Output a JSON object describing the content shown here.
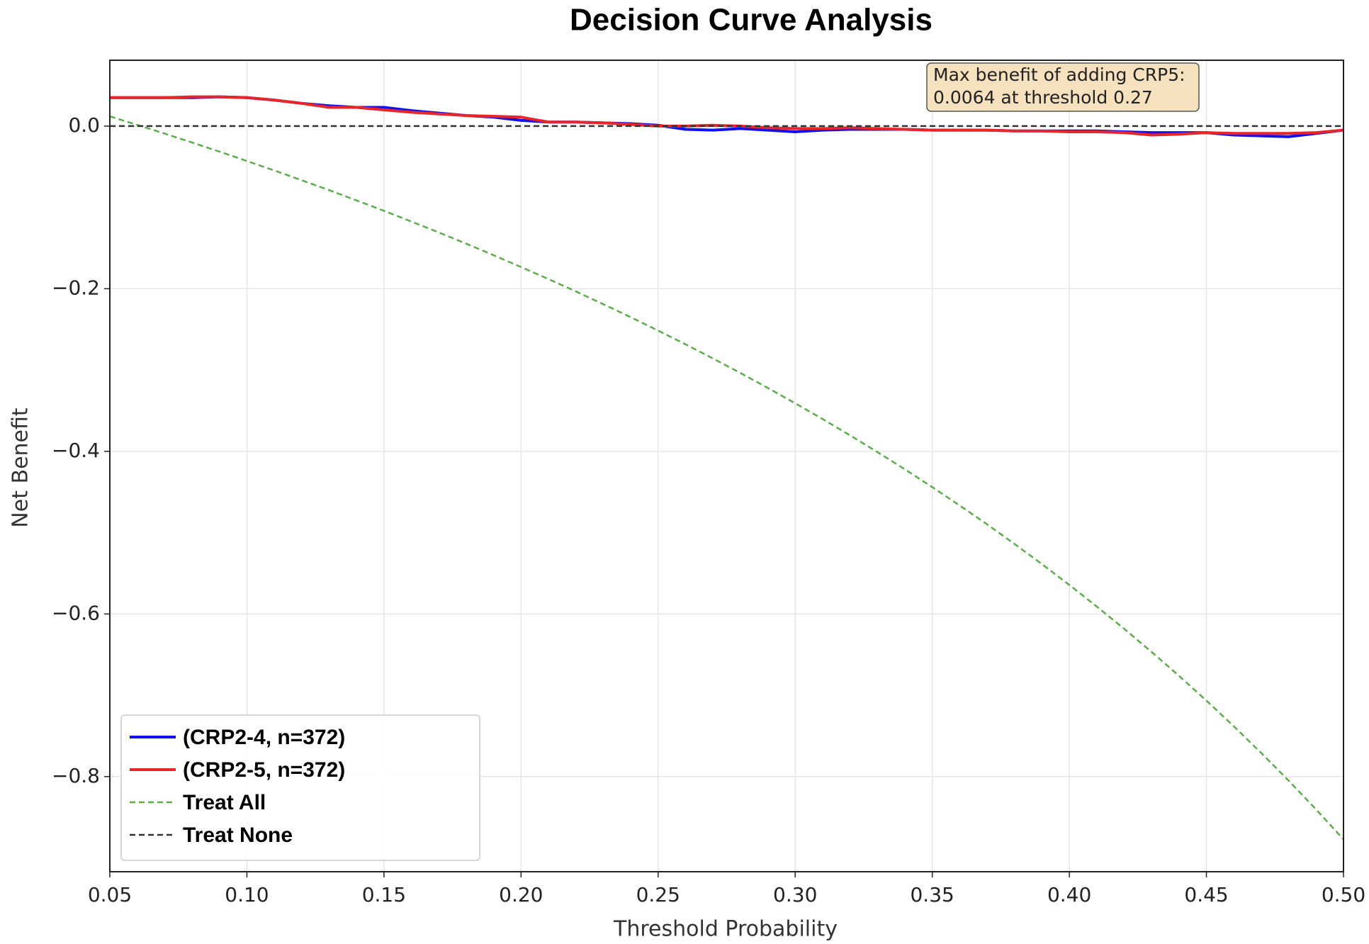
{
  "chart_data": {
    "type": "line",
    "title": "Decision Curve Analysis",
    "x_label": "Threshold Probability",
    "y_label": "Net Benefit",
    "annotation": [
      "Max benefit of adding CRP5:",
      "0.0064 at threshold 0.27"
    ],
    "xlim": [
      0.05,
      0.5
    ],
    "ylim": [
      -0.917,
      0.081
    ],
    "xticks": [
      {
        "value": 0.05,
        "label": "0.05"
      },
      {
        "value": 0.1,
        "label": "0.10"
      },
      {
        "value": 0.15,
        "label": "0.15"
      },
      {
        "value": 0.2,
        "label": "0.20"
      },
      {
        "value": 0.25,
        "label": "0.25"
      },
      {
        "value": 0.3,
        "label": "0.30"
      },
      {
        "value": 0.35,
        "label": "0.35"
      },
      {
        "value": 0.4,
        "label": "0.40"
      },
      {
        "value": 0.45,
        "label": "0.45"
      },
      {
        "value": 0.5,
        "label": "0.50"
      }
    ],
    "yticks": [
      {
        "value": -0.8,
        "label": "−0.8"
      },
      {
        "value": -0.6,
        "label": "−0.6"
      },
      {
        "value": -0.4,
        "label": "−0.4"
      },
      {
        "value": -0.2,
        "label": "−0.2"
      },
      {
        "value": 0,
        "label": "0.0"
      }
    ],
    "grid": true,
    "legend": "lower left",
    "x": [
      0.05,
      0.06,
      0.07,
      0.08,
      0.09,
      0.1,
      0.11,
      0.12,
      0.13,
      0.14,
      0.15,
      0.16,
      0.17,
      0.18,
      0.19,
      0.2,
      0.21,
      0.22,
      0.23,
      0.24,
      0.25,
      0.26,
      0.27,
      0.28,
      0.29,
      0.3,
      0.31,
      0.32,
      0.33,
      0.34,
      0.35,
      0.36,
      0.37,
      0.38,
      0.39,
      0.4,
      0.41,
      0.42,
      0.43,
      0.44,
      0.45,
      0.46,
      0.47,
      0.48,
      0.49,
      0.5
    ],
    "series": [
      {
        "name": "(CRP2-4, n=372)",
        "color": "#1010f0",
        "width": 4,
        "dash": "none",
        "values": [
          0.035,
          0.035,
          0.035,
          0.035,
          0.036,
          0.035,
          0.032,
          0.028,
          0.025,
          0.023,
          0.023,
          0.019,
          0.016,
          0.013,
          0.011,
          0.007,
          0.005,
          0.005,
          0.004,
          0.003,
          0.001,
          -0.004,
          -0.005,
          -0.003,
          -0.005,
          -0.007,
          -0.005,
          -0.004,
          -0.004,
          -0.004,
          -0.005,
          -0.005,
          -0.005,
          -0.006,
          -0.006,
          -0.006,
          -0.006,
          -0.007,
          -0.008,
          -0.008,
          -0.008,
          -0.011,
          -0.012,
          -0.013,
          -0.009,
          -0.005
        ]
      },
      {
        "name": "(CRP2-5, n=372)",
        "color": "#e8262a",
        "width": 4,
        "dash": "none",
        "values": [
          0.035,
          0.035,
          0.035,
          0.036,
          0.036,
          0.035,
          0.032,
          0.028,
          0.023,
          0.023,
          0.02,
          0.017,
          0.015,
          0.013,
          0.012,
          0.011,
          0.005,
          0.005,
          0.004,
          0.002,
          0.0,
          0.0,
          0.001,
          0.0,
          -0.002,
          -0.003,
          -0.003,
          -0.002,
          -0.003,
          -0.004,
          -0.005,
          -0.005,
          -0.005,
          -0.006,
          -0.006,
          -0.007,
          -0.007,
          -0.008,
          -0.011,
          -0.01,
          -0.008,
          -0.009,
          -0.009,
          -0.009,
          -0.008,
          -0.005
        ]
      },
      {
        "name": "Treat All",
        "color": "#5aad4a",
        "width": 2.5,
        "dash": "8 5",
        "values": [
          0.012,
          0.0015,
          -0.0092,
          -0.0202,
          -0.0314,
          -0.0429,
          -0.0546,
          -0.0666,
          -0.0788,
          -0.0914,
          -0.1042,
          -0.1174,
          -0.1308,
          -0.1446,
          -0.1588,
          -0.1733,
          -0.1881,
          -0.2033,
          -0.219,
          -0.235,
          -0.2515,
          -0.2684,
          -0.2858,
          -0.3036,
          -0.322,
          -0.3409,
          -0.3603,
          -0.3803,
          -0.4009,
          -0.4221,
          -0.444,
          -0.4666,
          -0.4898,
          -0.5139,
          -0.5387,
          -0.5643,
          -0.5909,
          -0.6183,
          -0.6467,
          -0.6761,
          -0.7066,
          -0.7382,
          -0.771,
          -0.805,
          -0.8404,
          -0.8772
        ]
      },
      {
        "name": "Treat None",
        "color": "#333333",
        "width": 2.5,
        "dash": "8 5",
        "values": [
          0,
          0,
          0,
          0,
          0,
          0,
          0,
          0,
          0,
          0,
          0,
          0,
          0,
          0,
          0,
          0,
          0,
          0,
          0,
          0,
          0,
          0,
          0,
          0,
          0,
          0,
          0,
          0,
          0,
          0,
          0,
          0,
          0,
          0,
          0,
          0,
          0,
          0,
          0,
          0,
          0,
          0,
          0,
          0,
          0,
          0
        ]
      }
    ]
  }
}
